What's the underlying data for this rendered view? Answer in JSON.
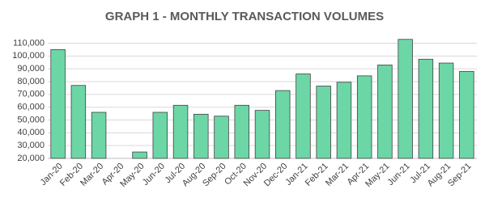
{
  "chart_data": {
    "type": "bar",
    "title": "GRAPH 1 - MONTHLY TRANSACTION VOLUMES",
    "categories": [
      "Jan-20",
      "Feb-20",
      "Mar-20",
      "Apr-20",
      "May-20",
      "Jun-20",
      "Jul-20",
      "Aug-20",
      "Sep-20",
      "Oct-20",
      "Nov-20",
      "Dec-20",
      "Jan-21",
      "Feb-21",
      "Mar-21",
      "Apr-21",
      "May-21",
      "Jun-21",
      "Jul-21",
      "Aug-21",
      "Sep-21"
    ],
    "values": [
      105000,
      77000,
      56000,
      20000,
      25000,
      56000,
      61500,
      54500,
      53000,
      61500,
      57500,
      73000,
      86000,
      76500,
      79500,
      84500,
      93000,
      113000,
      97500,
      94500,
      88000
    ],
    "color": "#6dd6a6",
    "ylim": [
      20000,
      116000
    ],
    "yticks": [
      {
        "value": 20000,
        "label": "20,000"
      },
      {
        "value": 30000,
        "label": "30,000"
      },
      {
        "value": 40000,
        "label": "40,000"
      },
      {
        "value": 50000,
        "label": "50,000"
      },
      {
        "value": 60000,
        "label": "60,000"
      },
      {
        "value": 70000,
        "label": "70,000"
      },
      {
        "value": 80000,
        "label": "80,000"
      },
      {
        "value": 90000,
        "label": "90,000"
      },
      {
        "value": 100000,
        "label": "100,000"
      },
      {
        "value": 110000,
        "label": "110,000"
      }
    ],
    "grid": true
  }
}
